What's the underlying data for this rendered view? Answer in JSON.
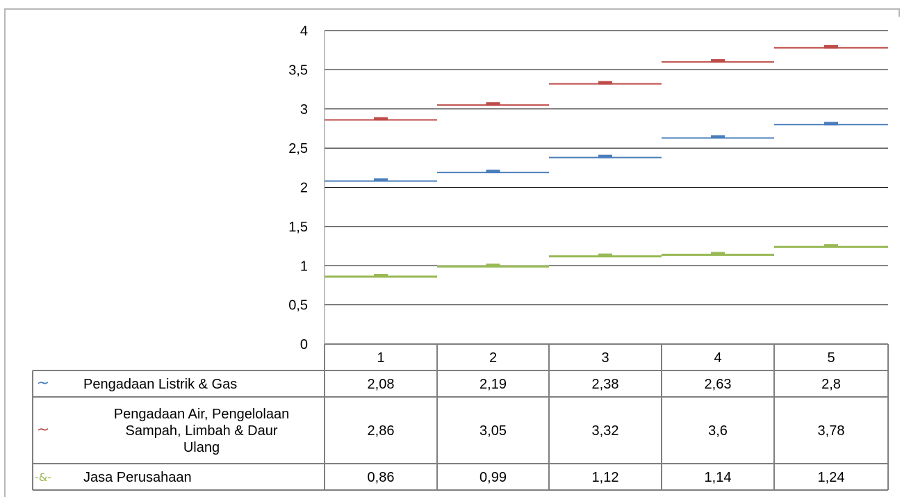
{
  "chart_data": {
    "type": "line",
    "title": "",
    "xlabel": "",
    "ylabel": "",
    "ylim": [
      0,
      4
    ],
    "yticks": [
      "0",
      "0,5",
      "1",
      "1,5",
      "2",
      "2,5",
      "3",
      "3,5",
      "4"
    ],
    "categories": [
      "1",
      "2",
      "3",
      "4",
      "5"
    ],
    "grid": true,
    "legend": "data-table-below",
    "series": [
      {
        "name": "Pengadaan Listrik & Gas",
        "legend_lines": [
          "Pengadaan Listrik & Gas"
        ],
        "marker": "~",
        "color": "#4a7ebb",
        "values": [
          2.08,
          2.19,
          2.38,
          2.63,
          2.8
        ],
        "value_labels": [
          "2,08",
          "2,19",
          "2,38",
          "2,63",
          "2,8"
        ]
      },
      {
        "name": "Pengadaan Air, Pengelolaan Sampah, Limbah & Daur Ulang",
        "legend_lines": [
          "Pengadaan Air, Pengelolaan",
          "Sampah, Limbah & Daur",
          "Ulang"
        ],
        "marker": "~",
        "color": "#be4b48",
        "values": [
          2.86,
          3.05,
          3.32,
          3.6,
          3.78
        ],
        "value_labels": [
          "2,86",
          "3,05",
          "3,32",
          "3,6",
          "3,78"
        ]
      },
      {
        "name": "Jasa Perusahaan",
        "legend_lines": [
          "Jasa Perusahaan"
        ],
        "marker": "-&-",
        "color": "#98b954",
        "values": [
          0.86,
          0.99,
          1.12,
          1.14,
          1.24
        ],
        "value_labels": [
          "0,86",
          "0,99",
          "1,12",
          "1,14",
          "1,24"
        ]
      }
    ]
  }
}
